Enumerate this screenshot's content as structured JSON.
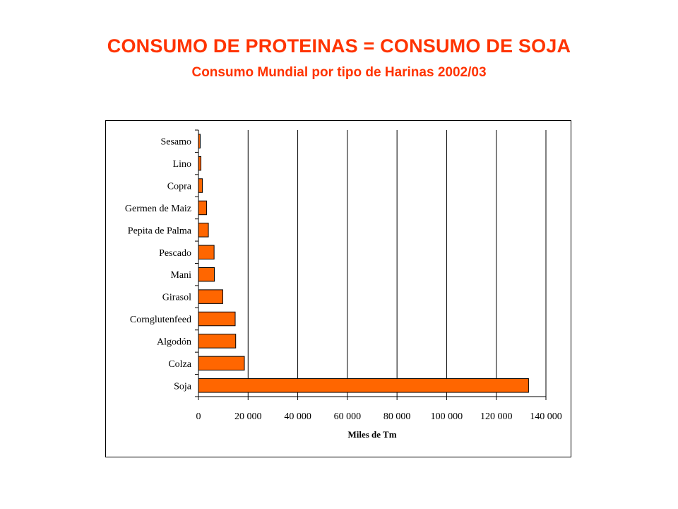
{
  "header": {
    "title": "CONSUMO DE PROTEINAS = CONSUMO DE SOJA",
    "subtitle": "Consumo Mundial por tipo de Harinas 2002/03"
  },
  "colors": {
    "title": "#ff3300",
    "bar_fill": "#ff6600",
    "bar_stroke": "#000000"
  },
  "chart_data": {
    "type": "bar",
    "orientation": "horizontal",
    "categories": [
      "Soja",
      "Colza",
      "Algodón",
      "Cornglutenfeed",
      "Girasol",
      "Mani",
      "Pescado",
      "Pepita de Palma",
      "Germen de Maiz",
      "Copra",
      "Lino",
      "Sesamo"
    ],
    "values": [
      133000,
      18500,
      15000,
      14800,
      9800,
      6400,
      6300,
      4000,
      3300,
      1600,
      1000,
      700
    ],
    "xlabel": "Miles de Tm",
    "xlim": [
      0,
      140000
    ],
    "xticks": [
      0,
      20000,
      40000,
      60000,
      80000,
      100000,
      120000,
      140000
    ],
    "xtick_labels": [
      "0",
      "20 000",
      "40 000",
      "60 000",
      "80 000",
      "100 000",
      "120 000",
      "140 000"
    ],
    "grid": "vertical",
    "legend": "none"
  }
}
